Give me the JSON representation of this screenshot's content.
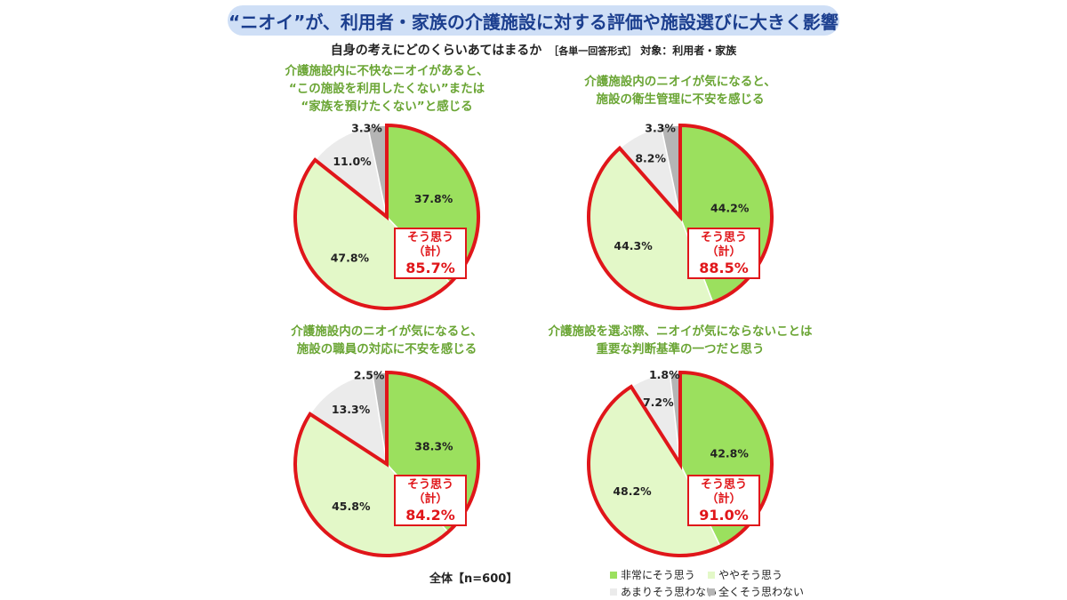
{
  "header": {
    "title": "“ニオイ”が、利用者・家族の介護施設に対する評価や施設選びに大きく影響",
    "question": "自身の考えにどのくらいあてはまるか",
    "format": "［各単一回答形式］",
    "target": "対象：利用者・家族"
  },
  "colors": {
    "strong_agree": "#9be05e",
    "agree": "#e3f8c8",
    "disagree": "#ebebeb",
    "strong_disagree": "#b5b5b5",
    "highlight": "#e0161a",
    "title_green": "#6aa534"
  },
  "chart_data": [
    {
      "type": "pie",
      "title_lines": [
        "介護施設内に不快なニオイがあると、",
        "“この施設を利用したくない”または",
        "“家族を預けたくない”と感じる"
      ],
      "slices": [
        {
          "label": "非常にそう思う",
          "value": 37.8,
          "text": "37.8%"
        },
        {
          "label": "ややそう思う",
          "value": 47.8,
          "text": "47.8%"
        },
        {
          "label": "あまりそう思わない",
          "value": 11.0,
          "text": "11.0%"
        },
        {
          "label": "全くそう思わない",
          "value": 3.3,
          "text": "3.3%"
        }
      ],
      "total": {
        "label": "そう思う",
        "sub": "（計）",
        "value": 85.7,
        "text": "85.7%"
      }
    },
    {
      "type": "pie",
      "title_lines": [
        "介護施設内のニオイが気になると、",
        "施設の衛生管理に不安を感じる"
      ],
      "slices": [
        {
          "label": "非常にそう思う",
          "value": 44.2,
          "text": "44.2%"
        },
        {
          "label": "ややそう思う",
          "value": 44.3,
          "text": "44.3%"
        },
        {
          "label": "あまりそう思わない",
          "value": 8.2,
          "text": "8.2%"
        },
        {
          "label": "全くそう思わない",
          "value": 3.3,
          "text": "3.3%"
        }
      ],
      "total": {
        "label": "そう思う",
        "sub": "（計）",
        "value": 88.5,
        "text": "88.5%"
      }
    },
    {
      "type": "pie",
      "title_lines": [
        "介護施設内のニオイが気になると、",
        "施設の職員の対応に不安を感じる"
      ],
      "slices": [
        {
          "label": "非常にそう思う",
          "value": 38.3,
          "text": "38.3%"
        },
        {
          "label": "ややそう思う",
          "value": 45.8,
          "text": "45.8%"
        },
        {
          "label": "あまりそう思わない",
          "value": 13.3,
          "text": "13.3%"
        },
        {
          "label": "全くそう思わない",
          "value": 2.5,
          "text": "2.5%"
        }
      ],
      "total": {
        "label": "そう思う",
        "sub": "（計）",
        "value": 84.2,
        "text": "84.2%"
      }
    },
    {
      "type": "pie",
      "title_lines": [
        "介護施設を選ぶ際、ニオイが気にならないことは",
        "重要な判断基準の一つだと思う"
      ],
      "slices": [
        {
          "label": "非常にそう思う",
          "value": 42.8,
          "text": "42.8%"
        },
        {
          "label": "ややそう思う",
          "value": 48.2,
          "text": "48.2%"
        },
        {
          "label": "あまりそう思わない",
          "value": 7.2,
          "text": "7.2%"
        },
        {
          "label": "全くそう思わない",
          "value": 1.8,
          "text": "1.8%"
        }
      ],
      "total": {
        "label": "そう思う",
        "sub": "（計）",
        "value": 91.0,
        "text": "91.0%"
      }
    }
  ],
  "sample": "全体【n=600】",
  "legend": [
    "非常にそう思う",
    "ややそう思う",
    "あまりそう思わない",
    "全くそう思わない"
  ]
}
